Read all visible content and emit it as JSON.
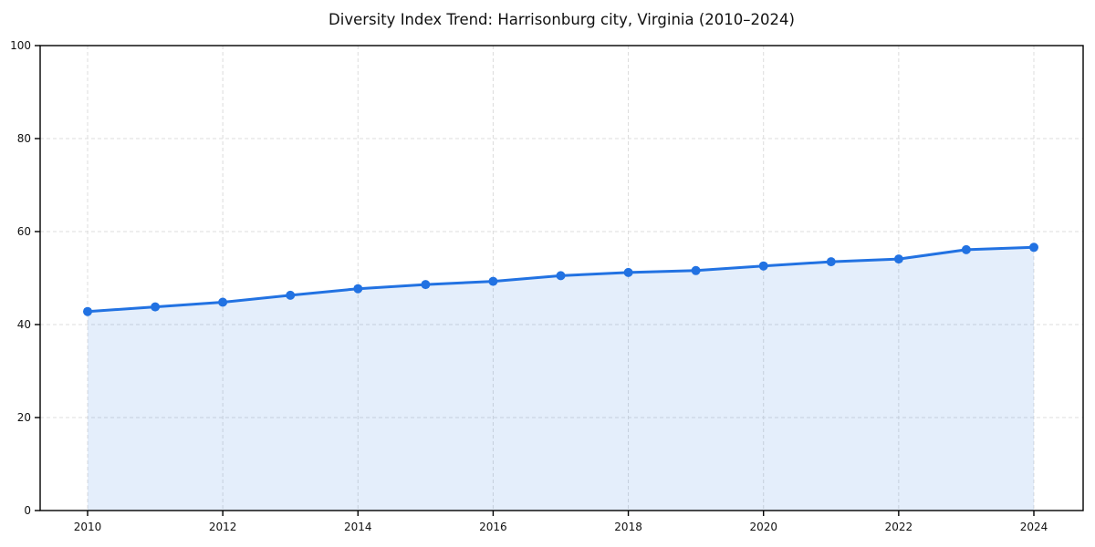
{
  "figure": {
    "background": "#ffffff"
  },
  "chart_data": {
    "type": "area",
    "title": "Diversity Index Trend: Harrisonburg city, Virginia (2010–2024)",
    "xlabel": "",
    "ylabel": "",
    "x": [
      2010,
      2011,
      2012,
      2013,
      2014,
      2015,
      2016,
      2017,
      2018,
      2019,
      2020,
      2021,
      2022,
      2023,
      2024
    ],
    "values": [
      42.8,
      43.8,
      44.8,
      46.3,
      47.7,
      48.6,
      49.3,
      50.5,
      51.2,
      51.6,
      52.6,
      53.5,
      54.1,
      56.1,
      56.6
    ],
    "ylim": [
      0,
      100
    ],
    "yticks": [
      0,
      20,
      40,
      60,
      80,
      100
    ],
    "xticks": [
      2010,
      2012,
      2014,
      2016,
      2018,
      2020,
      2022,
      2024
    ],
    "grid": "dashed",
    "legend": "none",
    "marker": "circle",
    "colors": {
      "line": "#2272e2",
      "marker": "#2272e2",
      "fill": "#2272e2",
      "fill_opacity": 0.12,
      "grid": "#dcdcdc",
      "axis": "#000000",
      "text": "#111111"
    }
  }
}
